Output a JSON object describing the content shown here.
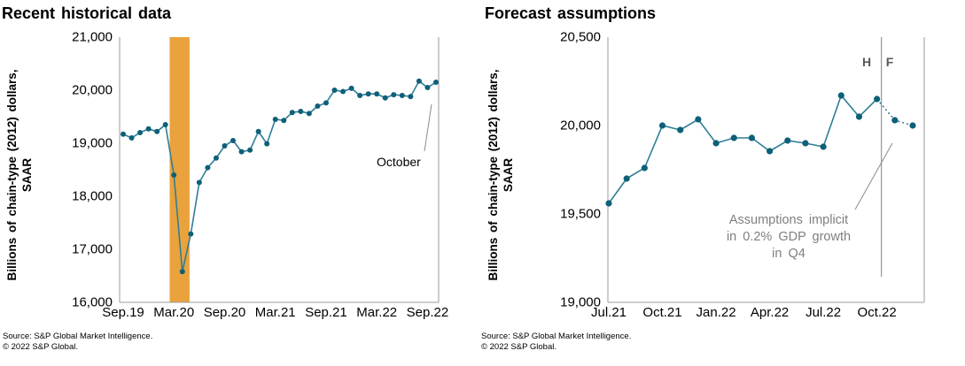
{
  "chart_data": [
    {
      "type": "line",
      "title": "Recent historical data",
      "ylabel": "Billions of chain-type (2012) dollars, SAAR",
      "ylabel_lines": [
        "Billions of chain-type (2012) dollars,",
        "SAAR"
      ],
      "categories": [
        "Sep.19",
        "Oct.19",
        "Nov.19",
        "Dec.19",
        "Jan.20",
        "Feb.20",
        "Mar.20",
        "Apr.20",
        "May.20",
        "Jun.20",
        "Jul.20",
        "Aug.20",
        "Sep.20",
        "Oct.20",
        "Nov.20",
        "Dec.20",
        "Jan.21",
        "Feb.21",
        "Mar.21",
        "Apr.21",
        "May.21",
        "Jun.21",
        "Jul.21",
        "Aug.21",
        "Sep.21",
        "Oct.21",
        "Nov.21",
        "Dec.21",
        "Jan.22",
        "Feb.22",
        "Mar.22",
        "Apr.22",
        "May.22",
        "Jun.22",
        "Jul.22",
        "Aug.22",
        "Sep.22",
        "Oct.22"
      ],
      "values": [
        19170,
        19100,
        19200,
        19270,
        19220,
        19350,
        18400,
        16580,
        17290,
        18260,
        18540,
        18720,
        18950,
        19050,
        18840,
        18870,
        19220,
        18990,
        19450,
        19430,
        19580,
        19600,
        19560,
        19700,
        19760,
        20000,
        19975,
        20035,
        19900,
        19930,
        19930,
        19855,
        19915,
        19900,
        19880,
        20170,
        20050,
        20150
      ],
      "ylim": [
        16000,
        21000
      ],
      "grid": false,
      "legend": "none",
      "y_ticks": [
        {
          "label": "21,000",
          "value": 21000
        },
        {
          "label": "20,000",
          "value": 20000
        },
        {
          "label": "19,000",
          "value": 19000
        },
        {
          "label": "18,000",
          "value": 18000
        },
        {
          "label": "17,000",
          "value": 17000
        },
        {
          "label": "16,000",
          "value": 16000
        }
      ],
      "x_ticks": [
        {
          "label": "Sep.19",
          "index": 0
        },
        {
          "label": "Mar.20",
          "index": 6
        },
        {
          "label": "Sep.20",
          "index": 12
        },
        {
          "label": "Mar.21",
          "index": 18
        },
        {
          "label": "Sep.21",
          "index": 24
        },
        {
          "label": "Mar.22",
          "index": 30
        },
        {
          "label": "Sep.22",
          "index": 36
        }
      ],
      "recession_band": {
        "start": "Mar.20",
        "end": "Apr.20",
        "color": "#EAA23C"
      },
      "annotation": {
        "text": "October",
        "points_to": "Oct.22"
      },
      "line_color": "#2F7E97",
      "marker_color": "#0D6078",
      "source_lines": [
        "Source: S&P Global Market Intelligence.",
        "© 2022 S&P Global."
      ]
    },
    {
      "type": "line",
      "title": "Forecast assumptions",
      "ylabel": "Billions of chain-type (2012) dollars, SAAR",
      "ylabel_lines": [
        "Billions of chain-type (2012) dollars,",
        "SAAR"
      ],
      "categories": [
        "Jul.21",
        "Aug.21",
        "Sep.21",
        "Oct.21",
        "Nov.21",
        "Dec.21",
        "Jan.22",
        "Feb.22",
        "Mar.22",
        "Apr.22",
        "May.22",
        "Jun.22",
        "Jul.22",
        "Aug.22",
        "Sep.22",
        "Oct.22",
        "Nov.22",
        "Dec.22"
      ],
      "values": [
        19560,
        19700,
        19760,
        20000,
        19975,
        20035,
        19900,
        19930,
        19930,
        19855,
        19915,
        19900,
        19880,
        20170,
        20050,
        20150,
        20030,
        20000
      ],
      "forecast_start_index": 16,
      "history_label": "H",
      "forecast_label": "F",
      "ylim": [
        19000,
        20500
      ],
      "grid": false,
      "legend": "none",
      "y_ticks": [
        {
          "label": "20,500",
          "value": 20500
        },
        {
          "label": "20,000",
          "value": 20000
        },
        {
          "label": "19,500",
          "value": 19500
        },
        {
          "label": "19,000",
          "value": 19000
        }
      ],
      "x_ticks": [
        {
          "label": "Jul.21",
          "index": 0
        },
        {
          "label": "Oct.21",
          "index": 3
        },
        {
          "label": "Jan.22",
          "index": 6
        },
        {
          "label": "Apr.22",
          "index": 9
        },
        {
          "label": "Jul.22",
          "index": 12
        },
        {
          "label": "Oct.22",
          "index": 15
        }
      ],
      "annotation": {
        "lines": [
          "Assumptions implicit",
          "in 0.2% GDP growth",
          "in Q4"
        ]
      },
      "line_color": "#2F7E97",
      "marker_color": "#0D6078",
      "source_lines": [
        "Source: S&P Global Market Intelligence.",
        "© 2022 S&P Global."
      ]
    }
  ]
}
